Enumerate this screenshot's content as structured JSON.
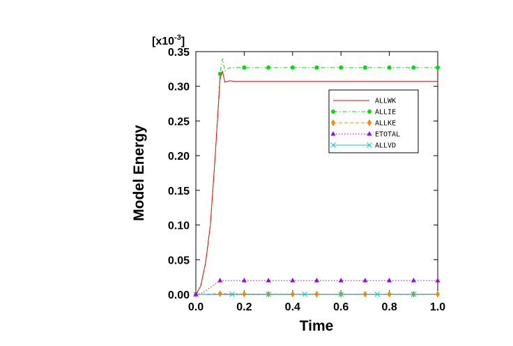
{
  "chart_data": {
    "type": "line",
    "xlabel": "Time",
    "ylabel": "Model Energy",
    "multiplier_label": "[x10",
    "multiplier_exp": "-3",
    "multiplier_close": "]",
    "xlim": [
      0,
      1.0
    ],
    "ylim": [
      0,
      0.35
    ],
    "xticks": [
      0.0,
      0.2,
      0.4,
      0.6,
      0.8,
      1.0
    ],
    "xtick_labels": [
      "0.0",
      "0.2",
      "0.4",
      "0.6",
      "0.8",
      "1.0"
    ],
    "yticks": [
      0,
      0.05,
      0.1,
      0.15,
      0.2,
      0.25,
      0.3,
      0.35
    ],
    "ytick_labels": [
      "0.00",
      "0.05",
      "0.10",
      "0.15",
      "0.20",
      "0.25",
      "0.30",
      "0.35"
    ],
    "grid": false,
    "legend_position": "top-right",
    "series": [
      {
        "name": "ALLWK",
        "color": "#ff0000",
        "line": "solid",
        "marker": "none",
        "x": [
          0,
          0.02,
          0.04,
          0.06,
          0.08,
          0.1,
          0.11,
          0.12,
          0.14,
          0.16,
          0.2,
          0.3,
          0.4,
          0.5,
          0.6,
          0.7,
          0.8,
          0.9,
          1.0
        ],
        "y": [
          0,
          0.012,
          0.045,
          0.1,
          0.2,
          0.31,
          0.322,
          0.306,
          0.308,
          0.307,
          0.307,
          0.307,
          0.307,
          0.307,
          0.307,
          0.307,
          0.307,
          0.307,
          0.307
        ]
      },
      {
        "name": "ALLIE",
        "color": "#00dd00",
        "line": "dashdot",
        "marker": "circle",
        "x": [
          0,
          0.02,
          0.04,
          0.06,
          0.08,
          0.1,
          0.11,
          0.12,
          0.14,
          0.16,
          0.2,
          0.3,
          0.4,
          0.5,
          0.6,
          0.7,
          0.8,
          0.9,
          1.0
        ],
        "y": [
          0,
          0.012,
          0.045,
          0.1,
          0.2,
          0.318,
          0.34,
          0.322,
          0.327,
          0.327,
          0.327,
          0.327,
          0.327,
          0.327,
          0.327,
          0.327,
          0.327,
          0.327,
          0.327
        ],
        "marker_x": [
          0.1,
          0.2,
          0.3,
          0.4,
          0.5,
          0.6,
          0.7,
          0.8,
          0.9,
          1.0
        ]
      },
      {
        "name": "ALLKE",
        "color": "#ff8800",
        "line": "dashed",
        "marker": "diamond",
        "x": [
          0,
          0.05,
          0.1,
          0.15,
          0.2,
          0.4,
          0.6,
          0.8,
          1.0
        ],
        "y": [
          0,
          0.0005,
          0.001,
          0.0008,
          0.0005,
          0.0003,
          0.0003,
          0.0003,
          0.0003
        ],
        "marker_x": [
          0.0,
          0.1,
          0.2,
          0.3,
          0.4,
          0.5,
          0.6,
          0.7,
          0.8,
          0.9,
          1.0
        ]
      },
      {
        "name": "ETOTAL",
        "color": "#9900ff",
        "line": "dotted",
        "marker": "triangle",
        "x": [
          0,
          0.02,
          0.04,
          0.06,
          0.08,
          0.1,
          0.12,
          0.2,
          0.4,
          0.6,
          0.8,
          1.0
        ],
        "y": [
          0,
          0.001,
          0.005,
          0.01,
          0.015,
          0.02,
          0.02,
          0.02,
          0.02,
          0.02,
          0.02,
          0.02
        ],
        "marker_x": [
          0.0,
          0.1,
          0.2,
          0.3,
          0.4,
          0.5,
          0.6,
          0.7,
          0.8,
          0.9,
          1.0
        ]
      },
      {
        "name": "ALLVD",
        "color": "#00cccc",
        "line": "solid",
        "marker": "x",
        "x": [
          0,
          0.1,
          0.2,
          0.4,
          0.6,
          0.8,
          1.0
        ],
        "y": [
          0,
          0.0002,
          0.0002,
          0.0002,
          0.0002,
          0.0002,
          0.0002
        ],
        "marker_x": [
          0.0,
          0.15,
          0.3,
          0.45,
          0.6,
          0.75,
          0.9
        ]
      }
    ]
  }
}
